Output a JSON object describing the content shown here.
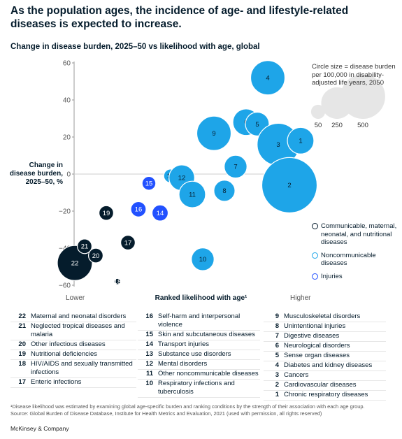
{
  "title": "As the population ages, the incidence of age- and lifestyle-related diseases is expected to increase.",
  "chart_data": {
    "type": "scatter",
    "title": "Change in disease burden, 2025–50 vs likelihood with age, global",
    "ylabel": "Change in disease burden, 2025–50, %",
    "xlabel": "Ranked likelihood with age¹",
    "x_low_label": "Lower",
    "x_high_label": "Higher",
    "ylim": [
      -60,
      60
    ],
    "yticks": [
      "60",
      "40",
      "20",
      "0",
      "−20",
      "−40",
      "−60"
    ],
    "ytick_values": [
      60,
      40,
      20,
      0,
      -20,
      -40,
      -60
    ],
    "colors": {
      "Communicable": "#051c2c",
      "Noncommunicable": "#1ea5e8",
      "Injuries": "#2251ff"
    },
    "series": [
      {
        "name": "Communicable, maternal, neonatal, and nutritional diseases",
        "points": [
          {
            "id": "22",
            "x": 1,
            "y": -48,
            "size": 260
          },
          {
            "id": "21",
            "x": 2,
            "y": -39,
            "size": 45
          },
          {
            "id": "20",
            "x": 3,
            "y": -44,
            "size": 45
          },
          {
            "id": "19",
            "x": 4,
            "y": -21,
            "size": 45
          },
          {
            "id": "18",
            "x": 5,
            "y": -58,
            "size": 8
          },
          {
            "id": "17",
            "x": 6,
            "y": -37,
            "size": 45
          }
        ]
      },
      {
        "name": "Injuries",
        "points": [
          {
            "id": "16",
            "x": 7,
            "y": -19,
            "size": 50
          },
          {
            "id": "15",
            "x": 8,
            "y": -5,
            "size": 40
          },
          {
            "id": "14",
            "x": 9,
            "y": -21,
            "size": 55
          }
        ]
      },
      {
        "name": "Noncommunicable diseases",
        "points": [
          {
            "id": "13",
            "x": 10,
            "y": -1,
            "size": 40
          },
          {
            "id": "12",
            "x": 11,
            "y": -2,
            "size": 140
          },
          {
            "id": "11",
            "x": 12,
            "y": -11,
            "size": 150
          },
          {
            "id": "10",
            "x": 13,
            "y": -46,
            "size": 110
          },
          {
            "id": "9",
            "x": 14,
            "y": 22,
            "size": 250
          },
          {
            "id": "8",
            "x": 15,
            "y": -9,
            "size": 95
          },
          {
            "id": "7",
            "x": 16,
            "y": 4,
            "size": 110
          },
          {
            "id": "6",
            "x": 17,
            "y": 28,
            "size": 150
          },
          {
            "id": "5",
            "x": 18,
            "y": 27,
            "size": 120
          },
          {
            "id": "4",
            "x": 19,
            "y": 52,
            "size": 250
          },
          {
            "id": "3",
            "x": 20,
            "y": 16,
            "size": 380
          },
          {
            "id": "1",
            "x": 21,
            "y": 18,
            "size": 150
          },
          {
            "id": "2",
            "x": 22,
            "y": -6,
            "size": 650
          }
        ]
      }
    ]
  },
  "size_legend": {
    "note": "Circle size = disease burden per 100,000 in disability-adjusted life years, 2050",
    "items": [
      {
        "label": "50",
        "size": 50
      },
      {
        "label": "250",
        "size": 250
      },
      {
        "label": "500",
        "size": 500
      }
    ]
  },
  "legend": [
    {
      "label": "Communicable, maternal, neonatal, and nutritional diseases",
      "color": "#051c2c"
    },
    {
      "label": "Noncommunicable diseases",
      "color": "#1ea5e8"
    },
    {
      "label": "Injuries",
      "color": "#2251ff"
    }
  ],
  "key": [
    [
      {
        "num": "22",
        "label": "Maternal and neonatal disorders"
      },
      {
        "num": "21",
        "label": "Neglected tropical diseases and malaria"
      },
      {
        "num": "20",
        "label": "Other infectious diseases"
      },
      {
        "num": "19",
        "label": "Nutritional deficiencies"
      },
      {
        "num": "18",
        "label": "HIV/AIDS and sexually transmitted infections"
      },
      {
        "num": "17",
        "label": "Enteric infections"
      }
    ],
    [
      {
        "num": "16",
        "label": "Self-harm and interpersonal violence"
      },
      {
        "num": "15",
        "label": "Skin and subcutaneous diseases"
      },
      {
        "num": "14",
        "label": "Transport injuries"
      },
      {
        "num": "13",
        "label": "Substance use disorders"
      },
      {
        "num": "12",
        "label": "Mental disorders"
      },
      {
        "num": "11",
        "label": "Other noncommunicable diseases"
      },
      {
        "num": "10",
        "label": "Respiratory infections and tuberculosis"
      }
    ],
    [
      {
        "num": "9",
        "label": "Musculoskeletal disorders"
      },
      {
        "num": "8",
        "label": "Unintentional injuries"
      },
      {
        "num": "7",
        "label": "Digestive diseases"
      },
      {
        "num": "6",
        "label": "Neurological disorders"
      },
      {
        "num": "5",
        "label": "Sense organ diseases"
      },
      {
        "num": "4",
        "label": "Diabetes and kidney diseases"
      },
      {
        "num": "3",
        "label": "Cancers"
      },
      {
        "num": "2",
        "label": "Cardiovascular diseases"
      },
      {
        "num": "1",
        "label": "Chronic respiratory diseases"
      }
    ]
  ],
  "footnote": "¹Disease likelihood was estimated by examining global age-specific burden and ranking conditions by the strength of their association with each age group.",
  "source": "Source: Global Burden of Disease Database, Institute for Health Metrics and Evaluation, 2021 (used with permission, all rights reserved)",
  "brand": "McKinsey & Company"
}
